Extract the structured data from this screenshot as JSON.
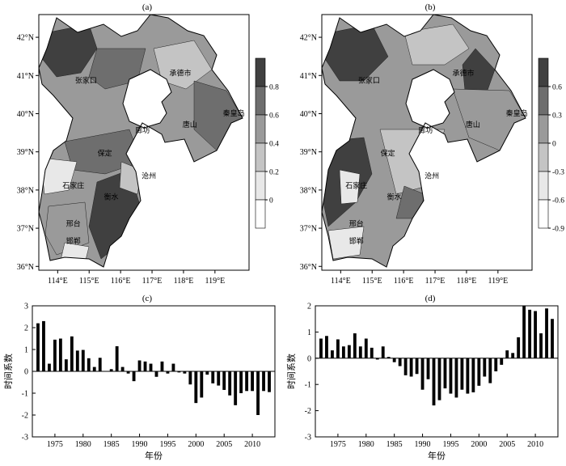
{
  "maps": [
    {
      "panel_label": "(a)",
      "lat_ticks": [
        "36°N",
        "37°N",
        "38°N",
        "39°N",
        "40°N",
        "41°N",
        "42°N"
      ],
      "lon_ticks": [
        "114°E",
        "115°E",
        "116°E",
        "117°E",
        "118°E",
        "119°E"
      ],
      "colorbar_ticks": [
        "0.8",
        "0.6",
        "0.4",
        "0.2",
        "0"
      ],
      "colorbar_colors": [
        "#404040",
        "#6e6e6e",
        "#9a9a9a",
        "#c4c4c4",
        "#e8e8e8",
        "#ffffff"
      ],
      "cities": [
        {
          "name": "张家口",
          "lon": 114.9,
          "lat": 40.8
        },
        {
          "name": "承德市",
          "lon": 117.9,
          "lat": 41.0
        },
        {
          "name": "秦皇岛",
          "lon": 119.6,
          "lat": 39.95
        },
        {
          "name": "唐山",
          "lon": 118.2,
          "lat": 39.65
        },
        {
          "name": "廊坊",
          "lon": 116.7,
          "lat": 39.5
        },
        {
          "name": "保定",
          "lon": 115.5,
          "lat": 38.9
        },
        {
          "name": "沧州",
          "lon": 116.9,
          "lat": 38.3
        },
        {
          "name": "石家庄",
          "lon": 114.5,
          "lat": 38.05
        },
        {
          "name": "衡水",
          "lon": 115.7,
          "lat": 37.75
        },
        {
          "name": "邢台",
          "lon": 114.5,
          "lat": 37.05
        },
        {
          "name": "邯郸",
          "lon": 114.5,
          "lat": 36.6
        }
      ]
    },
    {
      "panel_label": "(b)",
      "lat_ticks": [
        "36°N",
        "37°N",
        "38°N",
        "39°N",
        "40°N",
        "41°N",
        "42°N"
      ],
      "lon_ticks": [
        "114°E",
        "115°E",
        "116°E",
        "117°E",
        "118°E",
        "119°E"
      ],
      "colorbar_ticks": [
        "0.6",
        "0.3",
        "0",
        "-0.3",
        "-0.6",
        "-0.9"
      ],
      "colorbar_colors": [
        "#404040",
        "#6e6e6e",
        "#9a9a9a",
        "#c4c4c4",
        "#e8e8e8",
        "#ffffff"
      ],
      "cities": [
        {
          "name": "张家口",
          "lon": 114.9,
          "lat": 40.8
        },
        {
          "name": "承德市",
          "lon": 117.9,
          "lat": 41.0
        },
        {
          "name": "秦皇岛",
          "lon": 119.6,
          "lat": 39.95
        },
        {
          "name": "唐山",
          "lon": 118.2,
          "lat": 39.65
        },
        {
          "name": "廊坊",
          "lon": 116.7,
          "lat": 39.5
        },
        {
          "name": "保定",
          "lon": 115.5,
          "lat": 38.9
        },
        {
          "name": "沧州",
          "lon": 116.9,
          "lat": 38.3
        },
        {
          "name": "石家庄",
          "lon": 114.5,
          "lat": 38.05
        },
        {
          "name": "衡水",
          "lon": 115.7,
          "lat": 37.75
        },
        {
          "name": "邢台",
          "lon": 114.5,
          "lat": 37.05
        },
        {
          "name": "邯郸",
          "lon": 114.5,
          "lat": 36.6
        }
      ]
    }
  ],
  "chart_data": [
    {
      "type": "bar",
      "panel_label": "(c)",
      "xlabel": "年份",
      "ylabel": "时间系数",
      "ylim": [
        -3,
        3
      ],
      "yticks": [
        -3,
        -2,
        -1,
        0,
        1,
        2,
        3
      ],
      "xticks": [
        1975,
        1980,
        1985,
        1990,
        1995,
        2000,
        2005,
        2010
      ],
      "x": [
        1972,
        1973,
        1974,
        1975,
        1976,
        1977,
        1978,
        1979,
        1980,
        1981,
        1982,
        1983,
        1984,
        1985,
        1986,
        1987,
        1988,
        1989,
        1990,
        1991,
        1992,
        1993,
        1994,
        1995,
        1996,
        1997,
        1998,
        1999,
        2000,
        2001,
        2002,
        2003,
        2004,
        2005,
        2006,
        2007,
        2008,
        2009,
        2010,
        2011,
        2012,
        2013
      ],
      "values": [
        2.2,
        2.3,
        0.35,
        1.45,
        1.5,
        0.55,
        1.6,
        0.95,
        0.98,
        0.6,
        0.2,
        0.62,
        0.0,
        0.1,
        1.15,
        0.2,
        -0.1,
        -0.45,
        0.5,
        0.45,
        0.35,
        -0.25,
        0.45,
        -0.1,
        0.35,
        -0.05,
        -0.1,
        -0.6,
        -1.45,
        -1.2,
        -0.15,
        -0.55,
        -0.65,
        -0.85,
        -1.1,
        -1.55,
        -1.0,
        -0.9,
        -0.9,
        -2.0,
        -0.9,
        -0.95
      ]
    },
    {
      "type": "bar",
      "panel_label": "(d)",
      "xlabel": "年份",
      "ylabel": "时间系数",
      "ylim": [
        -3,
        2
      ],
      "yticks": [
        -3,
        -2,
        -1,
        0,
        1,
        2
      ],
      "xticks": [
        1975,
        1980,
        1985,
        1990,
        1995,
        2000,
        2005,
        2010
      ],
      "x": [
        1972,
        1973,
        1974,
        1975,
        1976,
        1977,
        1978,
        1979,
        1980,
        1981,
        1982,
        1983,
        1984,
        1985,
        1986,
        1987,
        1988,
        1989,
        1990,
        1991,
        1992,
        1993,
        1994,
        1995,
        1996,
        1997,
        1998,
        1999,
        2000,
        2001,
        2002,
        2003,
        2004,
        2005,
        2006,
        2007,
        2008,
        2009,
        2010,
        2011,
        2012,
        2013
      ],
      "values": [
        0.75,
        0.85,
        0.3,
        0.72,
        0.45,
        0.5,
        0.95,
        0.45,
        0.75,
        0.4,
        -0.05,
        0.45,
        0.05,
        -0.15,
        -0.3,
        -0.65,
        -0.7,
        -0.6,
        -1.2,
        -0.8,
        -1.8,
        -1.6,
        -1.15,
        -1.35,
        -1.5,
        -1.2,
        -1.35,
        -1.3,
        -1.05,
        -0.7,
        -0.95,
        -0.5,
        -0.25,
        0.3,
        0.2,
        0.8,
        2.0,
        1.85,
        1.8,
        0.95,
        1.9,
        1.5
      ]
    }
  ]
}
